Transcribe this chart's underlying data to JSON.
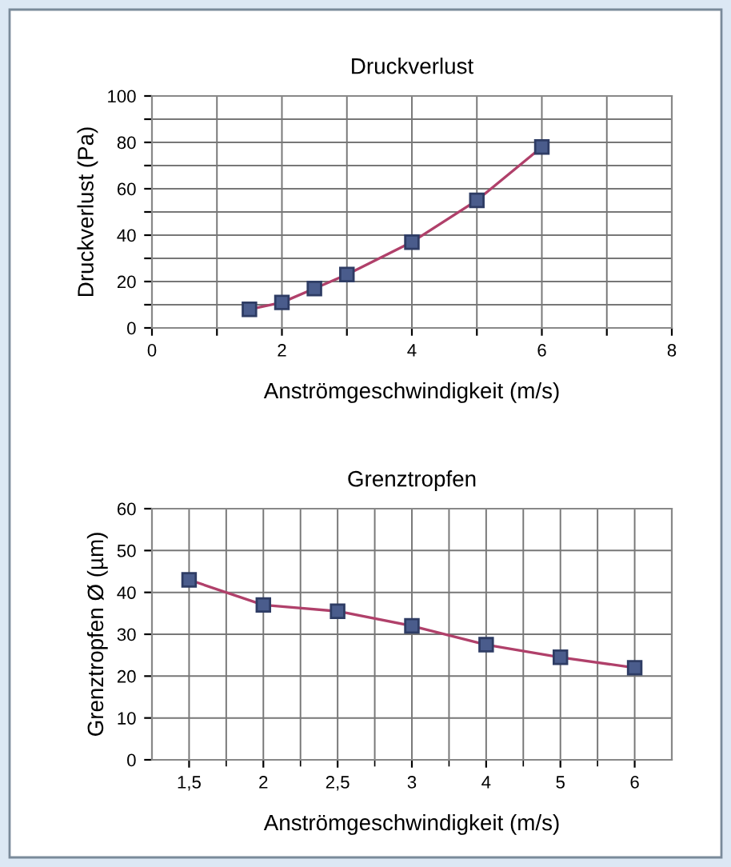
{
  "chart_data": [
    {
      "type": "line",
      "title": "Druckverlust",
      "xlabel": "Anströmgeschwindigkeit (m/s)",
      "ylabel": "Druckverlust (Pa)",
      "x": [
        1.5,
        2,
        2.5,
        3,
        4,
        5,
        6
      ],
      "series": [
        {
          "color": "#b0406a",
          "values": [
            8,
            11,
            17,
            23,
            37,
            55,
            78
          ]
        }
      ],
      "xlim": [
        0,
        8
      ],
      "xticks": [
        0,
        {
          "value": 1,
          "label": null
        },
        2,
        {
          "value": 3,
          "label": null
        },
        4,
        {
          "value": 5,
          "label": null
        },
        6,
        {
          "value": 7,
          "label": null
        },
        8
      ],
      "ylim": [
        0,
        100
      ],
      "yticks": [
        0,
        {
          "value": 10,
          "label": null
        },
        20,
        {
          "value": 30,
          "label": null
        },
        40,
        {
          "value": 50,
          "label": null
        },
        60,
        {
          "value": 70,
          "label": null
        },
        80,
        {
          "value": 90,
          "label": null
        },
        100
      ],
      "grid": true,
      "marker": "square",
      "line_style": "solid"
    },
    {
      "type": "line",
      "title": "Grenztropfen",
      "xlabel": "Anströmgeschwindigkeit (m/s)",
      "ylabel": "Grenztropfen Ø (µm)",
      "categories": [
        "1,5",
        "2",
        "2,5",
        "3",
        "4",
        "5",
        "6"
      ],
      "series": [
        {
          "color": "#b0406a",
          "values": [
            43,
            37,
            35.5,
            32,
            27.5,
            24.5,
            22
          ]
        }
      ],
      "ylim": [
        0,
        60
      ],
      "yticks": [
        0,
        10,
        20,
        30,
        40,
        50,
        60
      ],
      "grid": true,
      "marker": "square",
      "line_style": "solid"
    }
  ]
}
